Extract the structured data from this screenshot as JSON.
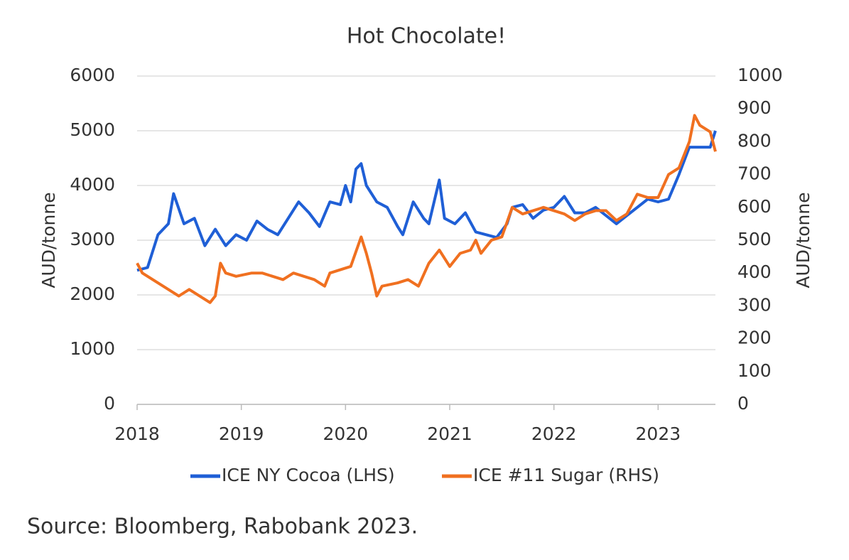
{
  "chart_data": {
    "type": "line",
    "title": "Hot Chocolate!",
    "y_label": "AUD/tonne",
    "y2_label": "AUD/tonne",
    "source": "Source: Bloomberg, Rabobank 2023.",
    "xlim": [
      2018,
      2023.55
    ],
    "xticks": [
      2018,
      2019,
      2020,
      2021,
      2022,
      2023
    ],
    "ylim": [
      0,
      6000
    ],
    "yticks": [
      0,
      1000,
      2000,
      3000,
      4000,
      5000,
      6000
    ],
    "y2lim": [
      0,
      1000
    ],
    "y2ticks": [
      0,
      100,
      200,
      300,
      400,
      500,
      600,
      700,
      800,
      900,
      1000
    ],
    "grid": true,
    "legend": "bottom",
    "series": [
      {
        "name": "ICE NY Cocoa (LHS)",
        "color": "#1f5fd6",
        "axis": "y",
        "x": [
          2018.0,
          2018.1,
          2018.2,
          2018.3,
          2018.35,
          2018.45,
          2018.55,
          2018.65,
          2018.75,
          2018.85,
          2018.95,
          2019.05,
          2019.15,
          2019.25,
          2019.35,
          2019.45,
          2019.55,
          2019.65,
          2019.75,
          2019.85,
          2019.95,
          2020.0,
          2020.05,
          2020.1,
          2020.15,
          2020.2,
          2020.3,
          2020.4,
          2020.5,
          2020.55,
          2020.65,
          2020.75,
          2020.8,
          2020.9,
          2020.95,
          2021.05,
          2021.15,
          2021.25,
          2021.35,
          2021.45,
          2021.55,
          2021.6,
          2021.7,
          2021.8,
          2021.9,
          2022.0,
          2022.1,
          2022.2,
          2022.3,
          2022.4,
          2022.5,
          2022.6,
          2022.7,
          2022.8,
          2022.9,
          2023.0,
          2023.1,
          2023.2,
          2023.3,
          2023.4,
          2023.5,
          2023.55
        ],
        "values": [
          2450,
          2500,
          3100,
          3300,
          3850,
          3300,
          3400,
          2900,
          3200,
          2900,
          3100,
          3000,
          3350,
          3200,
          3100,
          3400,
          3700,
          3500,
          3250,
          3700,
          3650,
          4000,
          3700,
          4300,
          4400,
          4000,
          3700,
          3600,
          3250,
          3100,
          3700,
          3400,
          3300,
          4100,
          3400,
          3300,
          3500,
          3150,
          3100,
          3050,
          3300,
          3600,
          3650,
          3400,
          3550,
          3600,
          3800,
          3500,
          3500,
          3600,
          3450,
          3300,
          3450,
          3600,
          3750,
          3700,
          3750,
          4200,
          4700,
          4700,
          4700,
          5000
        ]
      },
      {
        "name": "ICE #11 Sugar (RHS)",
        "color": "#f07020",
        "axis": "y2",
        "x": [
          2018.0,
          2018.05,
          2018.15,
          2018.3,
          2018.4,
          2018.5,
          2018.6,
          2018.7,
          2018.75,
          2018.8,
          2018.85,
          2018.95,
          2019.1,
          2019.2,
          2019.3,
          2019.4,
          2019.5,
          2019.6,
          2019.7,
          2019.8,
          2019.85,
          2019.95,
          2020.05,
          2020.15,
          2020.2,
          2020.25,
          2020.3,
          2020.35,
          2020.5,
          2020.6,
          2020.7,
          2020.8,
          2020.9,
          2021.0,
          2021.1,
          2021.2,
          2021.25,
          2021.3,
          2021.4,
          2021.5,
          2021.6,
          2021.7,
          2021.8,
          2021.9,
          2022.0,
          2022.1,
          2022.2,
          2022.3,
          2022.4,
          2022.5,
          2022.6,
          2022.7,
          2022.8,
          2022.9,
          2023.0,
          2023.1,
          2023.2,
          2023.3,
          2023.35,
          2023.4,
          2023.5,
          2023.55
        ],
        "values": [
          430,
          400,
          380,
          350,
          330,
          350,
          330,
          310,
          330,
          430,
          400,
          390,
          400,
          400,
          390,
          380,
          400,
          390,
          380,
          360,
          400,
          410,
          420,
          510,
          460,
          400,
          330,
          360,
          370,
          380,
          360,
          430,
          470,
          420,
          460,
          470,
          500,
          460,
          500,
          510,
          600,
          580,
          590,
          600,
          590,
          580,
          560,
          580,
          590,
          590,
          560,
          580,
          640,
          630,
          630,
          700,
          720,
          800,
          880,
          850,
          830,
          770
        ]
      }
    ]
  }
}
